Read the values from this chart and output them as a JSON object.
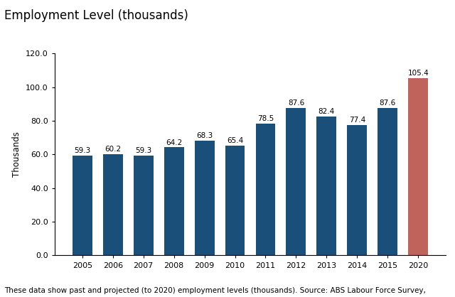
{
  "title": "Employment Level (thousands)",
  "ylabel": "Thousands",
  "categories": [
    "2005",
    "2006",
    "2007",
    "2008",
    "2009",
    "2010",
    "2011",
    "2012",
    "2013",
    "2014",
    "2015",
    "2020"
  ],
  "values": [
    59.3,
    60.2,
    59.3,
    64.2,
    68.3,
    65.4,
    78.5,
    87.6,
    82.4,
    77.4,
    87.6,
    105.4
  ],
  "bar_colors": [
    "#1a4f7a",
    "#1a4f7a",
    "#1a4f7a",
    "#1a4f7a",
    "#1a4f7a",
    "#1a4f7a",
    "#1a4f7a",
    "#1a4f7a",
    "#1a4f7a",
    "#1a4f7a",
    "#1a4f7a",
    "#c0635a"
  ],
  "ylim": [
    0,
    120
  ],
  "yticks": [
    0.0,
    20.0,
    40.0,
    60.0,
    80.0,
    100.0,
    120.0
  ],
  "footnote": "These data show past and projected (to 2020) employment levels (thousands). Source: ABS Labour Force Survey,",
  "title_fontsize": 12,
  "label_fontsize": 7.5,
  "footnote_fontsize": 7.5,
  "ylabel_fontsize": 8.5,
  "tick_fontsize": 8,
  "bar_width": 0.65,
  "background_color": "#ffffff"
}
